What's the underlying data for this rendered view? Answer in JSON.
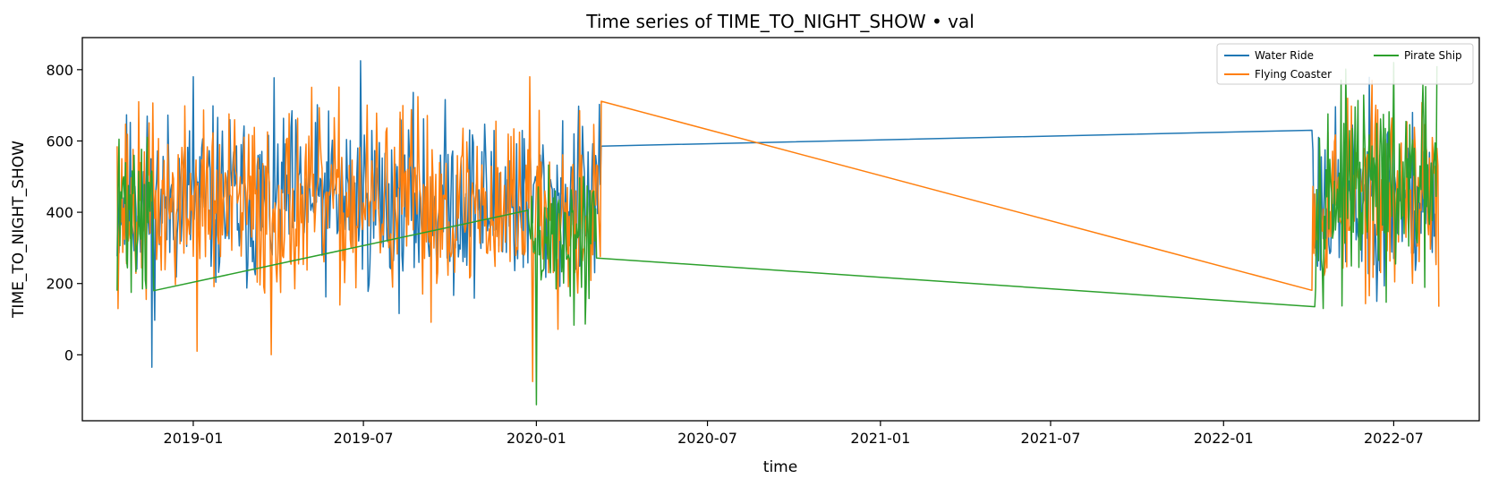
{
  "chart_data": {
    "type": "line",
    "title": "Time series of TIME_TO_NIGHT_SHOW • val",
    "xlabel": "time",
    "ylabel": "TIME_TO_NIGHT_SHOW",
    "x_range": [
      "2018-09-05",
      "2022-09-30"
    ],
    "ylim": [
      -185,
      890
    ],
    "x_ticks": [
      "2019-01",
      "2019-07",
      "2020-01",
      "2020-07",
      "2021-01",
      "2021-07",
      "2022-01",
      "2022-07"
    ],
    "y_ticks": [
      0,
      200,
      400,
      600,
      800
    ],
    "legend_position": "top-right",
    "grid": false,
    "series": [
      {
        "name": "Water Ride",
        "color": "#1f77b4",
        "segments": [
          {
            "start": "2018-10-12",
            "end": "2020-03-10",
            "seed": 11,
            "min": -35,
            "max": 825,
            "mean": 430,
            "spread": 180,
            "anchors": [
              [
                "2018-11-18",
                -35
              ],
              [
                "2019-06-28",
                825
              ],
              [
                "2019-01-01",
                780
              ]
            ]
          },
          {
            "start": "2022-04-05",
            "end": "2022-08-15",
            "seed": 23,
            "min": 150,
            "max": 820,
            "mean": 440,
            "spread": 180,
            "anchors": [
              [
                "2022-04-05",
                630
              ],
              [
                "2022-04-08",
                300
              ]
            ]
          }
        ]
      },
      {
        "name": "Flying Coaster",
        "color": "#ff7f0e",
        "segments": [
          {
            "start": "2018-10-12",
            "end": "2020-03-10",
            "seed": 37,
            "min": -75,
            "max": 810,
            "mean": 420,
            "spread": 190,
            "anchors": [
              [
                "2018-10-12",
                585
              ],
              [
                "2019-01-05",
                10
              ],
              [
                "2019-03-25",
                0
              ],
              [
                "2019-12-28",
                -75
              ],
              [
                "2019-12-25",
                780
              ]
            ]
          },
          {
            "start": "2022-04-05",
            "end": "2022-08-18",
            "seed": 53,
            "min": 135,
            "max": 820,
            "mean": 450,
            "spread": 190,
            "anchors": [
              [
                "2022-08-18",
                135
              ]
            ]
          }
        ]
      },
      {
        "name": "Pirate Ship",
        "color": "#2ca02c",
        "segments": [
          {
            "start": "2018-10-12",
            "end": "2018-11-20",
            "seed": 71,
            "min": 120,
            "max": 690,
            "mean": 420,
            "spread": 180,
            "anchors": [
              [
                "2018-10-12",
                180
              ],
              [
                "2018-11-20",
                180
              ]
            ]
          },
          {
            "start": "2019-12-22",
            "end": "2020-03-05",
            "seed": 89,
            "min": -140,
            "max": 740,
            "mean": 330,
            "spread": 170,
            "anchors": [
              [
                "2019-12-22",
                405
              ],
              [
                "2020-01-01",
                -140
              ]
            ]
          },
          {
            "start": "2022-04-08",
            "end": "2022-08-16",
            "seed": 97,
            "min": 130,
            "max": 820,
            "mean": 460,
            "spread": 190,
            "anchors": [
              [
                "2022-04-08",
                135
              ],
              [
                "2022-08-16",
                810
              ]
            ]
          }
        ]
      }
    ]
  }
}
